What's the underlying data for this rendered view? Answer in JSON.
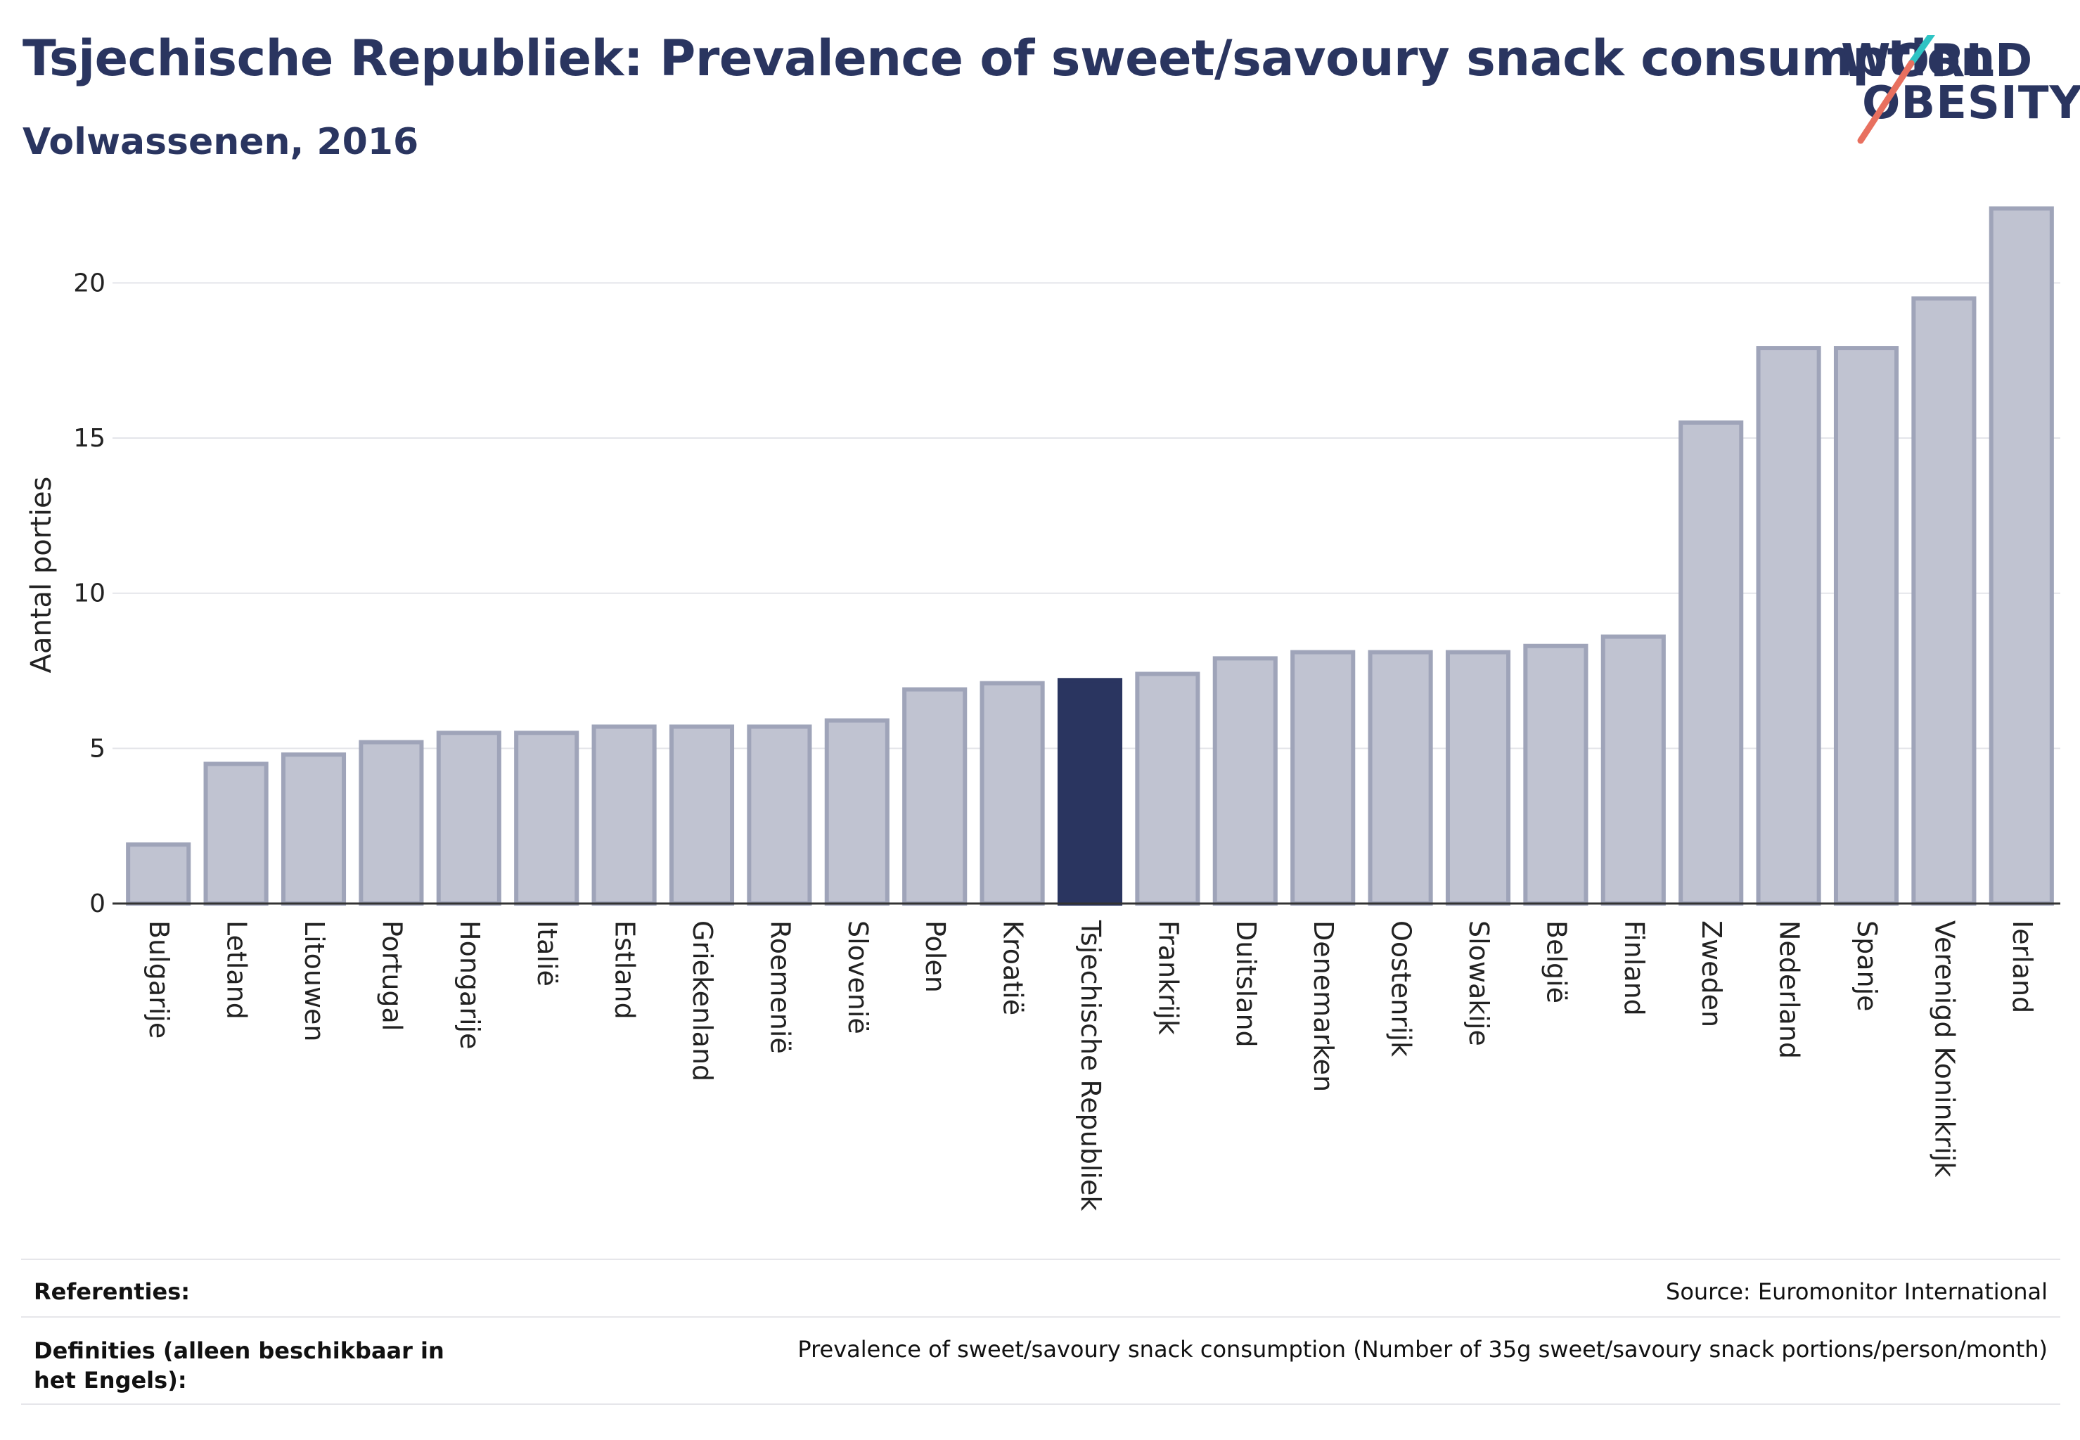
{
  "header": {
    "title": "Tsjechische Republiek: Prevalence of sweet/savoury snack consumption",
    "subtitle": "Volwassenen, 2016"
  },
  "logo": {
    "line1": "WORLD",
    "line2": "OBESITY"
  },
  "colors": {
    "highlight_bar": "#2a3560",
    "bar_fill": "#c0c3d1",
    "bar_stroke": "#9fa4b9",
    "text": "#2a3560",
    "logo_teal": "#2ec4c4",
    "logo_coral": "#e8705f"
  },
  "chart_data": {
    "type": "bar",
    "title": "Tsjechische Republiek: Prevalence of sweet/savoury snack consumption",
    "subtitle": "Volwassenen, 2016",
    "xlabel": "",
    "ylabel": "Aantal porties",
    "ylim": [
      0,
      23
    ],
    "yticks": [
      0,
      5,
      10,
      15,
      20
    ],
    "grid": true,
    "highlight": "Tsjechische Republiek",
    "categories": [
      "Bulgarije",
      "Letland",
      "Litouwen",
      "Portugal",
      "Hongarije",
      "Italië",
      "Estland",
      "Griekenland",
      "Roemenië",
      "Slovenië",
      "Polen",
      "Kroatië",
      "Tsjechische Republiek",
      "Frankrijk",
      "Duitsland",
      "Denemarken",
      "Oostenrijk",
      "Slowakije",
      "België",
      "Finland",
      "Zweden",
      "Nederland",
      "Spanje",
      "Verenigd Koninkrijk",
      "Ierland"
    ],
    "values": [
      1.9,
      4.5,
      4.8,
      5.2,
      5.5,
      5.5,
      5.7,
      5.7,
      5.7,
      5.9,
      6.9,
      7.1,
      7.2,
      7.4,
      7.9,
      8.1,
      8.1,
      8.1,
      8.3,
      8.6,
      15.5,
      17.9,
      17.9,
      19.5,
      22.4
    ]
  },
  "footer": {
    "references_label": "Referenties:",
    "references_value": "Source: Euromonitor International",
    "definitions_label": "Definities (alleen beschikbaar in het Engels):",
    "definitions_value": "Prevalence of sweet/savoury snack consumption (Number of 35g sweet/savoury snack portions/person/month)"
  }
}
